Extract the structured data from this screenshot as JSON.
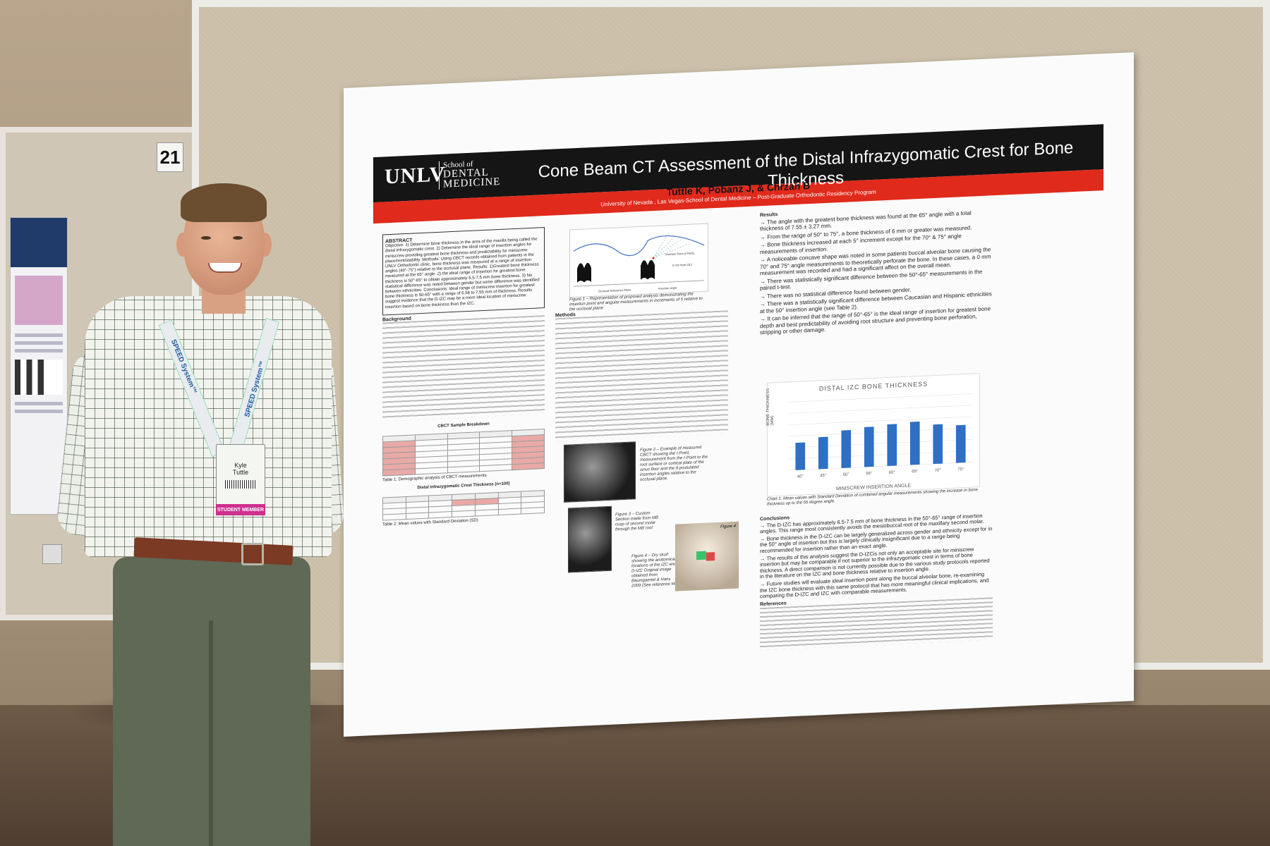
{
  "booth": {
    "number": "21"
  },
  "poster": {
    "logo": "UNLV",
    "logo_sub1": "School of",
    "logo_sub2": "DENTAL",
    "logo_sub3": "MEDICINE",
    "title": "Cone Beam CT Assessment of the Distal Infrazygomatic Crest for Bone Thickness",
    "authors": "Tuttle K, Pobanz J, & Chrzan B",
    "affiliation": "University of Nevada , Las Vegas-School of Dental Medicine – Post-Graduate Orthodontic Residency Program",
    "abstract_heading": "ABSTRACT",
    "abstract_text": "Objective: 1) Determine bone thickness in the area of the maxilla being called the distal infrazygomatic crest. 2) Determine the ideal range of insertion angles for miniscrew providing greatest bone thickness and predictability for miniscrew placement/stability. Methods: Using CBCT records obtained from patients in the UNLV Orthodontic clinic, bone thickness was measured at a range of insertion angles (40°-75°) relative to the occlusal plane. Results: 1)Greatest bone thickness measured at the 65° angle. 2) the ideal range of insertion for greatest bone thickness is 50°-65° to obtain approximately 6.5-7.5 mm bone thickness. 3) No statistical difference was noted between gender but some difference was identified between ethnicities. Conclusions: Ideal range of miniscrew insertion for greatest bone thickness is 50-65° with a range of 6.58 to 7.55 mm of thickness. Results suggest evidence that the D-IZC may be a more ideal location of miniscrew insertion based on bone thickness than the IZC.",
    "background_heading": "Background",
    "methods_heading": "Methods",
    "results_heading": "Results",
    "results": [
      "→ The angle with the greatest bone thickness was found at the 65° angle with a total thickness of 7.55 ± 3.27 mm.",
      "→ From the range of 50° to 75°, a bone thickness of 6 mm or greater was measured.",
      "→ Bone thickness increased at each 5° increment except for the 70° & 75° angle measurements of insertion.",
      "→ A noticeable concave shape was noted in some patients buccal alveolar bone causing the 70° and 75° angle measurements to theoretically perforate the bone. In these cases, a 0 mm measurement was recorded and had a significant affect on the overall mean.",
      "→ There was statistically significant difference between the 50°-65° measurements in the paired t-test.",
      "→ There was no statistical difference found between gender.",
      "→ There was a statistically significant difference between Caucasian and Hispanic ethnicities at the 50° insertion angle (see Table 2).",
      "→ It can be inferred that the range of 50°-65° is the ideal range of insertion for greatest bone depth and best predictability of avoiding root structure and preventing bone perforation, stripping or other damage."
    ],
    "conclusions_heading": "Conclusions",
    "conclusions": [
      "→ The D-IZC has approximately 6.5-7.5 mm of bone thickness in the 50°-65° range of insertion angles. This range most consistently avoids the mesiobuccal root of the maxillary second molar.",
      "→ Bone thickness in the D-IZC can be largely generalized across gender and ethnicity except for in the 50° angle of insertion but this is largely clinically insignificant due to a range being recommended for insertion rather than an exact angle.",
      "→ The results of this analysis suggest the D-IZCis not only an acceptable site for miniscrew insertion but may be comparable if not superior to the infrazygomatic crest in terms of bone thickness. A direct comparison is not currently possible due to the various study protocols reported in the literature on the IZC and bone thickness relative to insertion angle.",
      "→ Future studies will evaluate ideal insertion point along the buccal alveolar bone, re-examining the IZC bone thickness with this same protocol that has more meaningful clinical implications, and comparing the D-IZC and IZC with comparable measurements."
    ],
    "references_heading": "References",
    "figure1_caption": "Figure 1 – Representation of proposed analysis demonstrating the insertion point and angular measurements in increments of 5 relative to the occlusal plane",
    "figure2_caption": "Figure 2 – Example of measured CBCT showing the I-Point, measurement from the I-Point to the root surface or cortical plate of the sinus floor and the 8 postulated insertion angles relative to the occlusal plane.",
    "figure3_caption": "Figure 3 – Custom Section made from MB cusp of second molar through the MB root",
    "figure4_caption": "Figure 4 – Dry skull showing the anatomical locations of the IZC and D-IZC Original image obtained from Baumgaertel & Hans 2009 (See reference #6).",
    "figure4_label": "Figure 4",
    "table1_title": "CBCT Sample Breakdown",
    "table1_caption": "Table 1: Demographic analysis of CBCT measurements",
    "table2_title": "Distal Infrazygomatic Crest Thickness (n=100)",
    "table2_caption": "Table 2: Mean values with Standard Deviation (SD)",
    "fig1_labels": {
      "insertion_point": "Insertion Point (I-Point)",
      "five_mm": "5 mm from CEJ",
      "occlusal": "Occlusal Reference Plane",
      "insertion_angle": "Insertion angle"
    }
  },
  "chart_data": {
    "type": "bar",
    "title": "DISTAL IZC BONE THICKNESS",
    "xlabel": "MINISCREW INSERTION ANGLE",
    "ylabel": "BONE THICKNESS (MM)",
    "categories": [
      "40°",
      "45°",
      "50°",
      "55°",
      "60°",
      "65°",
      "70°",
      "75°"
    ],
    "values": [
      4.8,
      5.6,
      6.6,
      7.0,
      7.3,
      7.55,
      6.9,
      6.6
    ],
    "ylim": [
      0,
      12
    ],
    "bar_color": "#2f6fc4",
    "caption": "Chart 1. Mean values with Standard Deviation of combined angular measurements showing the increase in bone thickness up to the 65 degree angle."
  },
  "badge": {
    "first": "Kyle",
    "last": "Tuttle",
    "ribbon": "STUDENT MEMBER",
    "lanyard": "SPEED System™"
  }
}
